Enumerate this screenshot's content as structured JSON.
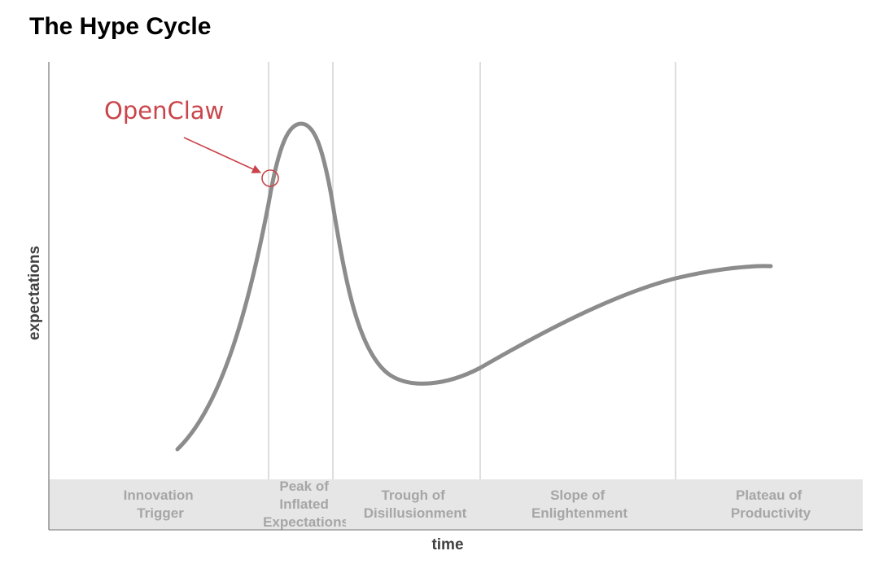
{
  "title": "The Hype Cycle",
  "axes": {
    "x_label": "time",
    "y_label": "expectations"
  },
  "phases": [
    {
      "id": "innovation-trigger",
      "lines": [
        "Innovation",
        "Trigger"
      ]
    },
    {
      "id": "peak-of-inflated-expectations",
      "lines": [
        "Peak of",
        "Inflated",
        "Expectations"
      ]
    },
    {
      "id": "trough-of-disillusionment",
      "lines": [
        "Trough of",
        "Disillusionment"
      ]
    },
    {
      "id": "slope-of-enlightenment",
      "lines": [
        "Slope of",
        "Enlightenment"
      ]
    },
    {
      "id": "plateau-of-productivity",
      "lines": [
        "Plateau of",
        "Productivity"
      ]
    }
  ],
  "callout": {
    "label": "OpenClaw",
    "color": "#c9454b"
  },
  "colors": {
    "curve": "#8c8c8c",
    "band": "#e6e6e6",
    "divider": "#c8c8c8",
    "axis": "#808080",
    "phase_text": "#a6a6a6"
  }
}
